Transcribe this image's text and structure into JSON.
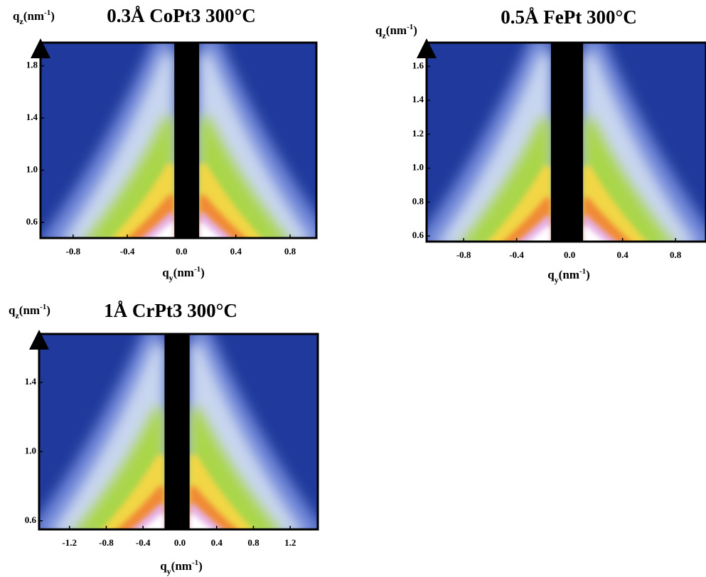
{
  "chart_data": [
    {
      "type": "heatmap",
      "title": "0.3Å CoPt3 300°C",
      "xlabel": [
        "q",
        "y",
        "(nm",
        "-1",
        ")"
      ],
      "ylabel": [
        "q",
        "z",
        "(nm",
        "-1",
        ")"
      ],
      "xlim": [
        -1.04,
        0.994
      ],
      "ylim": [
        0.48,
        1.977
      ],
      "xticks": [
        -0.8,
        -0.4,
        {
          "value": 0,
          "label": "0.0"
        },
        0.4,
        0.8
      ],
      "yticks": [
        0.6,
        {
          "value": 1,
          "label": "1.0"
        },
        1.4,
        1.8
      ]
    },
    {
      "type": "heatmap",
      "title": "0.5Å FePt 300°C",
      "xlabel": [
        "q",
        "y",
        "(nm",
        "-1",
        ")"
      ],
      "ylabel": [
        "q",
        "z",
        "(nm",
        "-1",
        ")"
      ],
      "xlim": [
        -1.08,
        1.03
      ],
      "ylim": [
        0.567,
        1.74
      ],
      "xticks": [
        -0.8,
        -0.4,
        {
          "value": 0,
          "label": "0.0"
        },
        0.4,
        0.8
      ],
      "yticks": [
        0.6,
        0.8,
        {
          "value": 1,
          "label": "1.0"
        },
        1.2,
        1.4,
        1.6
      ]
    },
    {
      "type": "heatmap",
      "title": "1Å CrPt3 300°C",
      "xlabel": [
        "q",
        "y",
        "(nm",
        "-1",
        ")"
      ],
      "ylabel": [
        "q",
        "z",
        "(nm",
        "-1",
        ")"
      ],
      "xlim": [
        -1.53,
        1.5
      ],
      "ylim": [
        0.55,
        1.68
      ],
      "xticks": [
        -1.2,
        -0.8,
        -0.4,
        {
          "value": 0,
          "label": "0.0"
        },
        0.4,
        0.8,
        1.2
      ],
      "yticks": [
        0.6,
        {
          "value": 1,
          "label": "1.0"
        },
        1.4
      ]
    }
  ]
}
